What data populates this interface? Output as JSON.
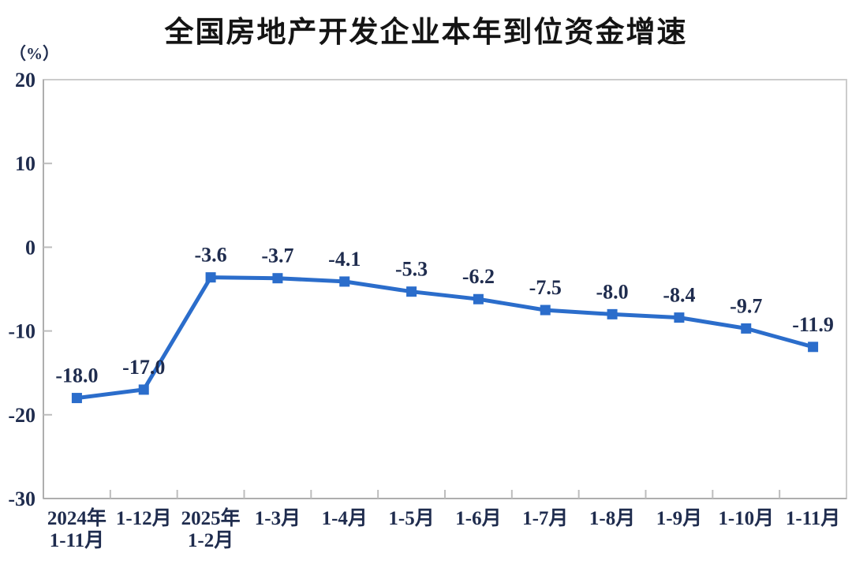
{
  "chart": {
    "title": "全国房地产开发企业本年到位资金增速",
    "unit_label": "（%）"
  },
  "chart_data": {
    "type": "line",
    "title": "全国房地产开发企业本年到位资金增速",
    "xlabel": "",
    "ylabel": "（%）",
    "categories": [
      "2024年\n1-11月",
      "1-12月",
      "2025年\n1-2月",
      "1-3月",
      "1-4月",
      "1-5月",
      "1-6月",
      "1-7月",
      "1-8月",
      "1-9月",
      "1-10月",
      "1-11月"
    ],
    "values": [
      -18.0,
      -17.0,
      -3.6,
      -3.7,
      -4.1,
      -5.3,
      -6.2,
      -7.5,
      -8.0,
      -8.4,
      -9.7,
      -11.9
    ],
    "data_labels": [
      "-18.0",
      "-17.0",
      "-3.6",
      "-3.7",
      "-4.1",
      "-5.3",
      "-6.2",
      "-7.5",
      "-8.0",
      "-8.4",
      "-9.7",
      "-11.9"
    ],
    "ylim": [
      -30,
      20
    ],
    "yticks": [
      20,
      10,
      0,
      -10,
      -20,
      -30
    ],
    "grid": false,
    "legend": "none",
    "marker": "square",
    "colors": {
      "line": "#2b6dcb",
      "marker": "#2b6dcb",
      "text": "#1f2c4e",
      "title": "#141414",
      "plot_border": "#cccccc",
      "axis_spine": "#aeaeae",
      "tick": "#bdbdbd"
    }
  }
}
